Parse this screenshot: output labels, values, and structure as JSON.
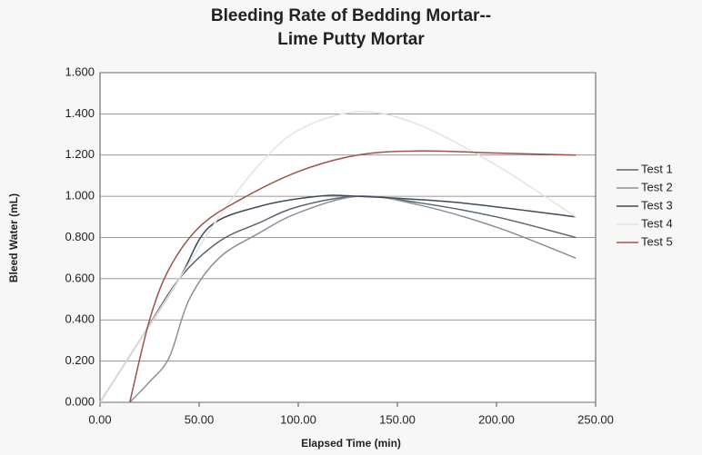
{
  "chart_data": {
    "type": "line",
    "title": [
      "Bleeding Rate of Bedding Mortar--",
      "Lime Putty Mortar"
    ],
    "x_label": "Elapsed Time (min)",
    "y_label": "Bleed Water (mL)",
    "xlim": [
      0,
      250
    ],
    "xticks": [
      {
        "value": 0,
        "label": "0.00"
      },
      {
        "value": 50,
        "label": "50.00"
      },
      {
        "value": 100,
        "label": "100.00"
      },
      {
        "value": 150,
        "label": "150.00"
      },
      {
        "value": 200,
        "label": "200.00"
      },
      {
        "value": 250,
        "label": "250.00"
      }
    ],
    "ylim": [
      0,
      1.6
    ],
    "yticks": [
      {
        "value": 0,
        "label": "0.000"
      },
      {
        "value": 0.2,
        "label": "0.200"
      },
      {
        "value": 0.4,
        "label": "0.400"
      },
      {
        "value": 0.6,
        "label": "0.600"
      },
      {
        "value": 0.8,
        "label": "0.800"
      },
      {
        "value": 1.0,
        "label": "1.000"
      },
      {
        "value": 1.2,
        "label": "1.200"
      },
      {
        "value": 1.4,
        "label": "1.400"
      },
      {
        "value": 1.6,
        "label": "1.600"
      }
    ],
    "grid": true,
    "legend": "right",
    "series": [
      {
        "name": "Test 1",
        "color": "#5a6470",
        "x": [
          0,
          20,
          40,
          60,
          80,
          100,
          130,
          160,
          200,
          240
        ],
        "values": [
          0,
          0.3,
          0.6,
          0.78,
          0.87,
          0.95,
          1.0,
          0.97,
          0.9,
          0.8
        ]
      },
      {
        "name": "Test 2",
        "color": "#8a8f96",
        "x": [
          15,
          25,
          35,
          45,
          60,
          80,
          100,
          130,
          160,
          200,
          240
        ],
        "values": [
          0,
          0.1,
          0.22,
          0.5,
          0.7,
          0.82,
          0.92,
          1.0,
          0.96,
          0.85,
          0.7
        ]
      },
      {
        "name": "Test 3",
        "color": "#3e4a58",
        "x": [
          0,
          20,
          40,
          55,
          80,
          110,
          130,
          180,
          240
        ],
        "values": [
          0,
          0.3,
          0.6,
          0.85,
          0.95,
          1.0,
          1.0,
          0.97,
          0.9
        ]
      },
      {
        "name": "Test 4",
        "color": "#e2e2e2",
        "x": [
          0,
          20,
          40,
          60,
          80,
          100,
          130,
          160,
          200,
          240
        ],
        "values": [
          0,
          0.3,
          0.6,
          0.9,
          1.15,
          1.32,
          1.41,
          1.35,
          1.15,
          0.9
        ]
      },
      {
        "name": "Test 5",
        "color": "#a0524b",
        "x": [
          15,
          25,
          35,
          50,
          70,
          100,
          130,
          160,
          200,
          240
        ],
        "values": [
          0,
          0.4,
          0.65,
          0.85,
          0.98,
          1.12,
          1.2,
          1.22,
          1.21,
          1.2
        ]
      }
    ]
  }
}
